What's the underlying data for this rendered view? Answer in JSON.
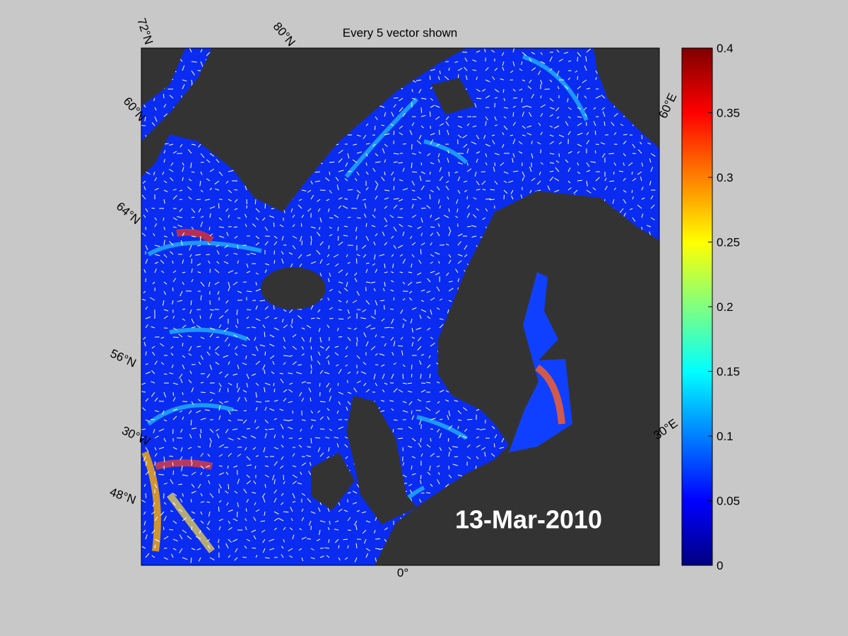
{
  "map": {
    "title": "Every 5 vector shown",
    "date": "13-Mar-2010",
    "grid_labels": [
      "72°N",
      "80°N",
      "60°N",
      "64°N",
      "56°N",
      "30°W",
      "48°N",
      "0°",
      "60°E",
      "30°E"
    ],
    "colorbar": {
      "colormap": "jet",
      "clim": [
        0,
        0.4
      ],
      "ticks": [
        0,
        0.05,
        0.1,
        0.15,
        0.2,
        0.25,
        0.3,
        0.35,
        0.4
      ]
    }
  }
}
